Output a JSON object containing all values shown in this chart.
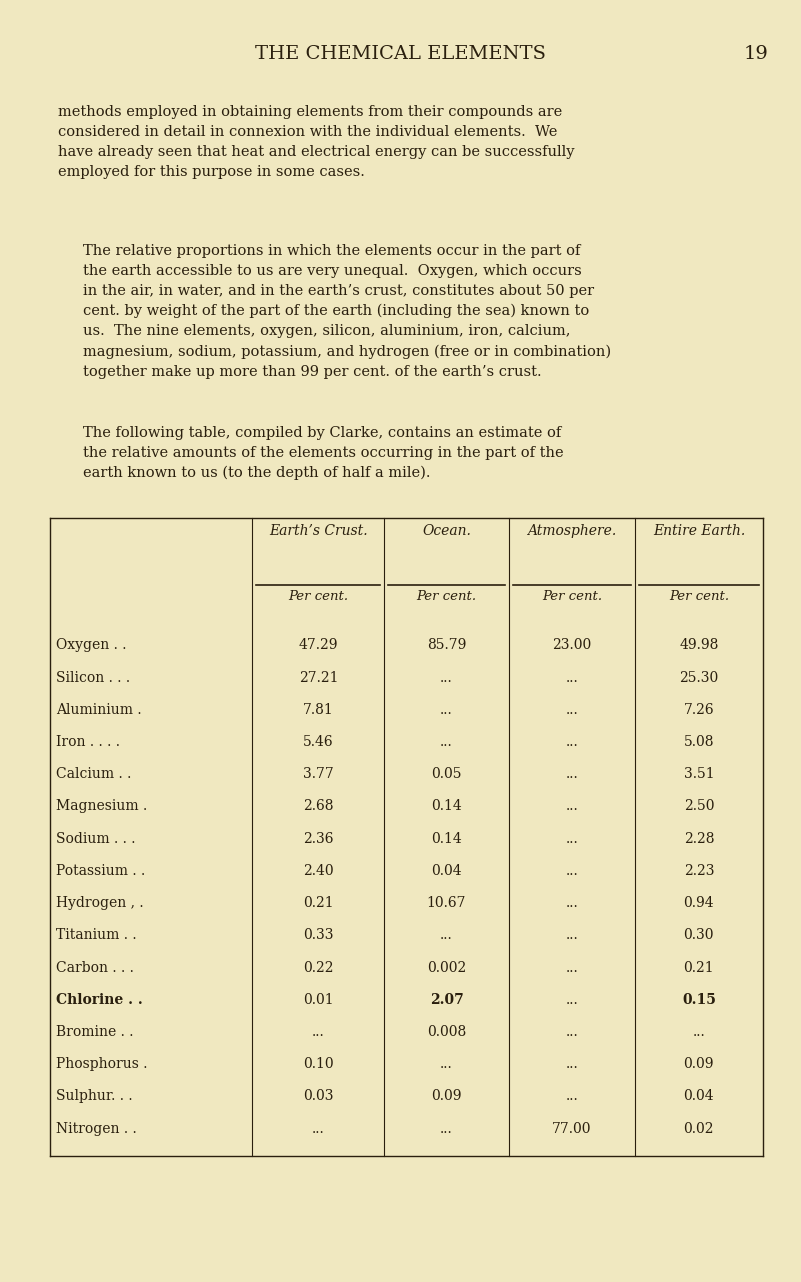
{
  "bg_color": "#f0e8c0",
  "title": "THE CHEMICAL ELEMENTS",
  "page_num": "19",
  "paragraph1": "methods employed in obtaining elements from their compounds are\nconsidered in detail in connexion with the individual elements.  We\nhave already seen that heat and electrical energy can be successfully\nemployed for this purpose in some cases.",
  "paragraph2": "The relative proportions in which the elements occur in the part of\nthe earth accessible to us are very unequal.  Oxygen, which occurs\nin the air, in water, and in the earth’s crust, constitutes about 50 per\ncent. by weight of the part of the earth (including the sea) known to\nus.  The nine elements, oxygen, silicon, aluminium, iron, calcium,\nmagnesium, sodium, potassium, and hydrogen (free or in combination)\ntogether make up more than 99 per cent. of the earth’s crust.",
  "paragraph3": "The following table, compiled by Clarke, contains an estimate of\nthe relative amounts of the elements occurring in the part of the\nearth known to us (to the depth of half a mile).",
  "table_headers": [
    "",
    "Earth’s Crust.",
    "Ocean.",
    "Atmosphere.",
    "Entire Earth."
  ],
  "table_subheaders": [
    "",
    "Per cent.",
    "Per cent.",
    "Per cent.",
    "Per cent."
  ],
  "table_rows": [
    [
      "Oxygen . .",
      "47.29",
      "85.79",
      "23.00",
      "49.98"
    ],
    [
      "Silicon . . .",
      "27.21",
      "...",
      "...",
      "25.30"
    ],
    [
      "Aluminium .",
      "7.81",
      "...",
      "...",
      "7.26"
    ],
    [
      "Iron . . . .",
      "5.46",
      "...",
      "...",
      "5.08"
    ],
    [
      "Calcium . .",
      "3.77",
      "0.05",
      "...",
      "3.51"
    ],
    [
      "Magnesium .",
      "2.68",
      "0.14",
      "...",
      "2.50"
    ],
    [
      "Sodium . . .",
      "2.36",
      "0.14",
      "...",
      "2.28"
    ],
    [
      "Potassium . .",
      "2.40",
      "0.04",
      "...",
      "2.23"
    ],
    [
      "Hydrogen , .",
      "0.21",
      "10.67",
      "...",
      "0.94"
    ],
    [
      "Titanium . .",
      "0.33",
      "...",
      "...",
      "0.30"
    ],
    [
      "Carbon . . .",
      "0.22",
      "0.002",
      "...",
      "0.21"
    ],
    [
      "Chlorine . .",
      "0.01",
      "2.07",
      "...",
      "0.15"
    ],
    [
      "Bromine . .",
      "...",
      "0.008",
      "...",
      "..."
    ],
    [
      "Phosphorus .",
      "0.10",
      "...",
      "...",
      "0.09"
    ],
    [
      "Sulphur. . .",
      "0.03",
      "0.09",
      "...",
      "0.04"
    ],
    [
      "Nitrogen . .",
      "...",
      "...",
      "77.00",
      "0.02"
    ]
  ],
  "text_color": "#2a1f0e",
  "font_size_body": 10.5,
  "font_size_title": 14,
  "font_size_table": 10
}
